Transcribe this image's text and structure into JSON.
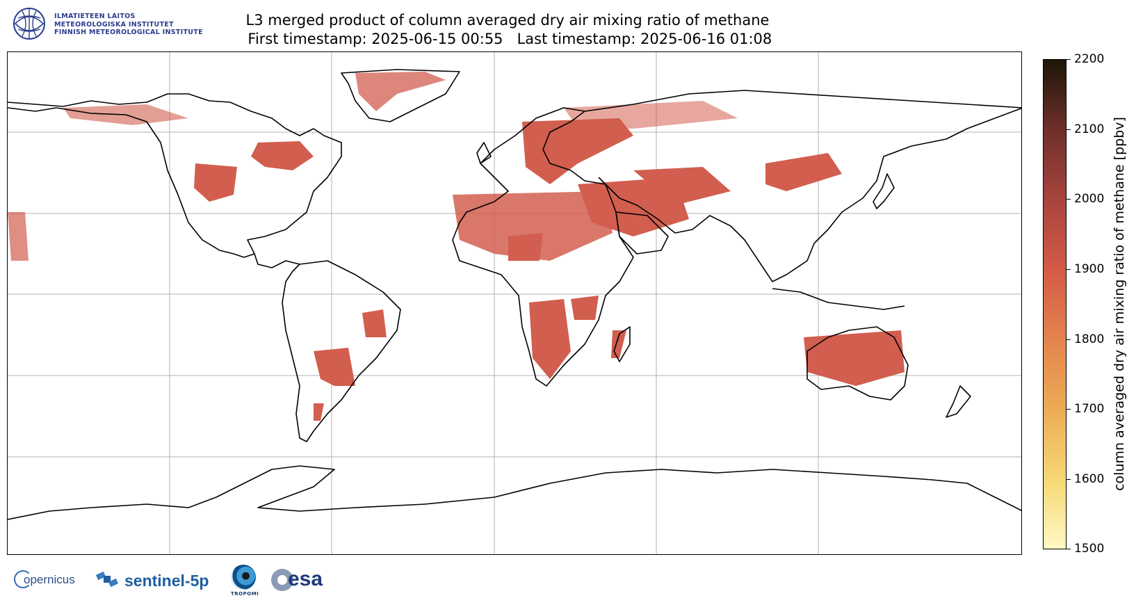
{
  "institute": {
    "lines": [
      "ILMATIETEEN LAITOS",
      "METEOROLOGISKA INSTITUTET",
      "FINNISH METEOROLOGICAL INSTITUTE"
    ]
  },
  "title": {
    "line1": "L3 merged product of column averaged dry air mixing ratio of methane",
    "line2": " First timestamp: 2025-06-15 00:55   Last timestamp: 2025-06-16 01:08"
  },
  "colorbar": {
    "label": "column averaged dry air mixing ratio of methane [ppbv]",
    "ticks": [
      "2200",
      "2100",
      "2000",
      "1900",
      "1800",
      "1700",
      "1600",
      "1500"
    ],
    "min": 1500,
    "max": 2200
  },
  "map": {
    "gridlines": true,
    "data_color": "#cf5646"
  },
  "logos": {
    "copernicus": "opernicus",
    "sentinel": "sentinel-5p",
    "tropomi": "TROPOMI",
    "esa": "esa"
  }
}
